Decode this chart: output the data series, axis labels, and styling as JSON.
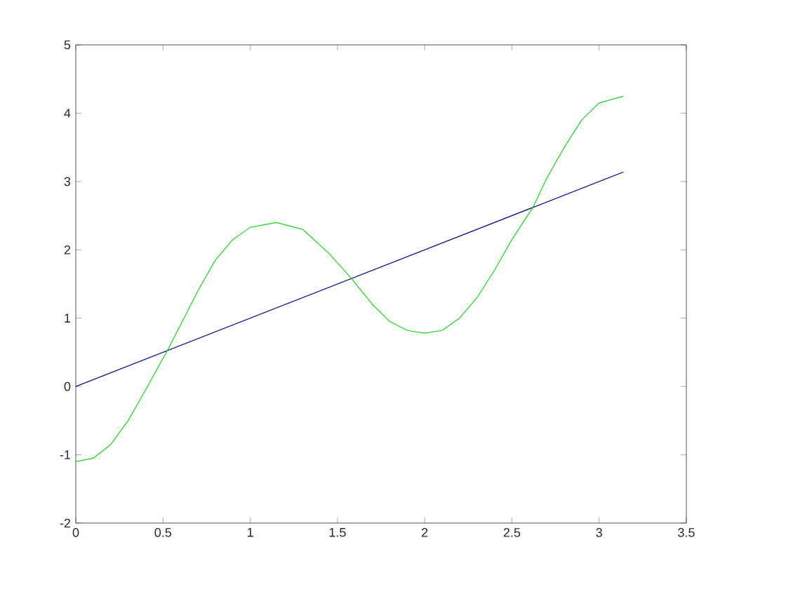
{
  "chart_data": {
    "type": "line",
    "series": [
      {
        "color": "#00008b",
        "x": [
          0,
          3.14
        ],
        "values": [
          0,
          3.14
        ]
      },
      {
        "color": "#1ed21e",
        "x": [
          0,
          0.1,
          0.2,
          0.3,
          0.4,
          0.53,
          0.6,
          0.7,
          0.8,
          0.9,
          1.0,
          1.15,
          1.3,
          1.45,
          1.58,
          1.7,
          1.8,
          1.9,
          2.0,
          2.1,
          2.2,
          2.3,
          2.4,
          2.5,
          2.62,
          2.7,
          2.8,
          2.9,
          3.0,
          3.14
        ],
        "values": [
          -1.1,
          -1.05,
          -0.85,
          -0.5,
          -0.05,
          0.55,
          0.9,
          1.4,
          1.85,
          2.15,
          2.33,
          2.4,
          2.3,
          1.95,
          1.58,
          1.2,
          0.95,
          0.82,
          0.78,
          0.82,
          1.0,
          1.3,
          1.7,
          2.15,
          2.62,
          3.05,
          3.5,
          3.9,
          4.15,
          4.25
        ]
      }
    ],
    "xlim": [
      0,
      3.5
    ],
    "ylim": [
      -2,
      5
    ],
    "xticks": [
      0,
      0.5,
      1,
      1.5,
      2,
      2.5,
      3,
      3.5
    ],
    "yticks": [
      -2,
      -1,
      0,
      1,
      2,
      3,
      4,
      5
    ],
    "grid": false,
    "marker": "none",
    "line_style": "solid"
  }
}
